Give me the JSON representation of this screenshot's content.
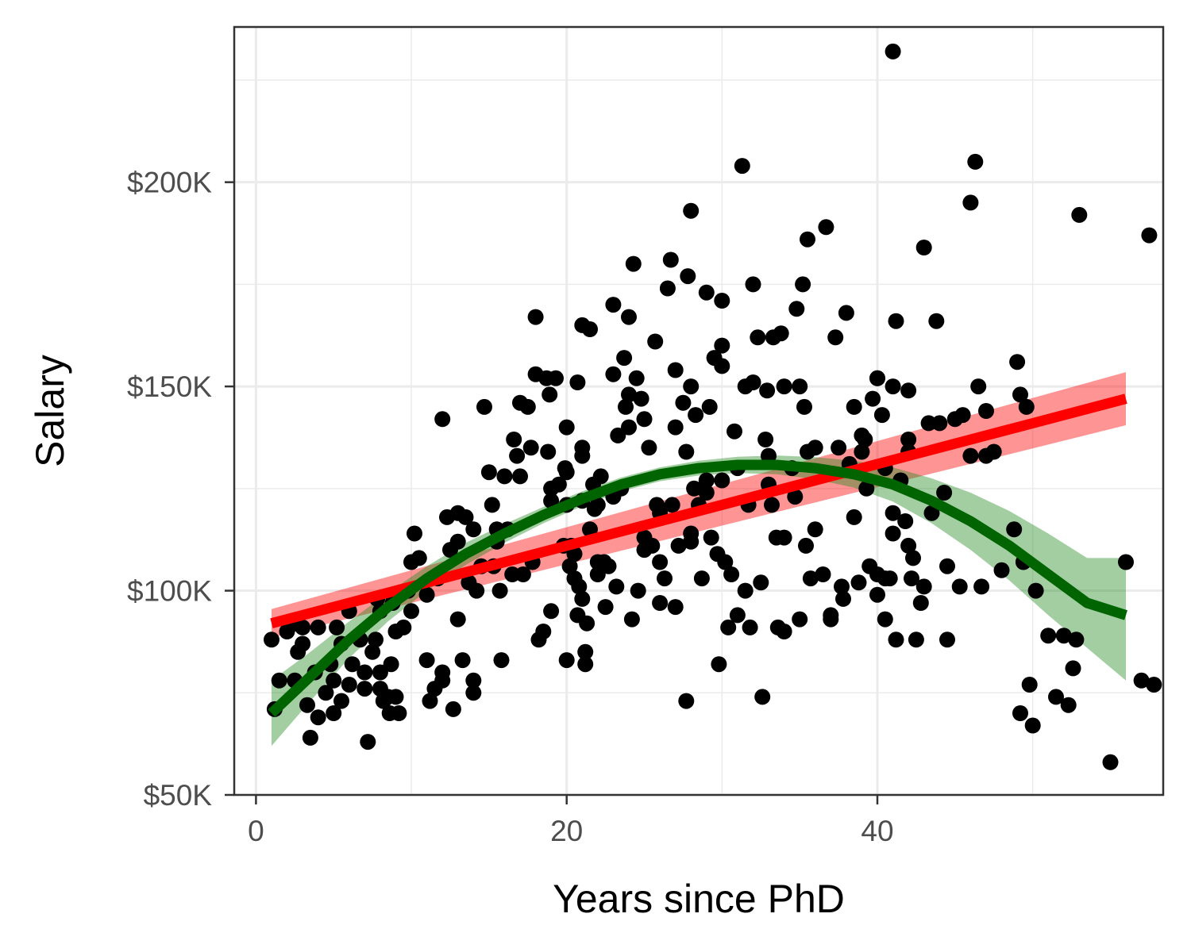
{
  "chart_data": {
    "type": "scatter",
    "title": "",
    "xlabel": "Years since PhD",
    "ylabel": "Salary",
    "xlim": [
      -1.4,
      58.4
    ],
    "ylim": [
      50000,
      238000
    ],
    "x_ticks": [
      0,
      20,
      40
    ],
    "x_tick_labels": [
      "0",
      "20",
      "40"
    ],
    "x_minor_ticks": [
      10,
      30,
      50
    ],
    "y_ticks": [
      50000,
      100000,
      150000,
      200000
    ],
    "y_tick_labels": [
      "$50K",
      "$100K",
      "$150K",
      "$200K"
    ],
    "y_minor_ticks": [
      75000,
      125000,
      175000,
      225000
    ],
    "grid": true,
    "points_color": "#000000",
    "points": [
      [
        1,
        88000
      ],
      [
        1.2,
        71000
      ],
      [
        1.5,
        78000
      ],
      [
        2,
        90000
      ],
      [
        2.5,
        92000
      ],
      [
        2.5,
        78000
      ],
      [
        2.7,
        85000
      ],
      [
        3,
        87000
      ],
      [
        3,
        91000
      ],
      [
        3.3,
        72000
      ],
      [
        3.5,
        64000
      ],
      [
        3.8,
        80000
      ],
      [
        4,
        69000
      ],
      [
        4,
        91000
      ],
      [
        4.5,
        75000
      ],
      [
        4.8,
        82000
      ],
      [
        5,
        70000
      ],
      [
        5,
        78000
      ],
      [
        5.2,
        91000
      ],
      [
        5.5,
        73000
      ],
      [
        5.5,
        87000
      ],
      [
        6,
        77000
      ],
      [
        6,
        95000
      ],
      [
        6.2,
        82000
      ],
      [
        6.7,
        88000
      ],
      [
        7,
        80000
      ],
      [
        7,
        76000
      ],
      [
        7.2,
        63000
      ],
      [
        7.5,
        85000
      ],
      [
        7.7,
        88000
      ],
      [
        7.8,
        98000
      ],
      [
        8,
        95000
      ],
      [
        8,
        80000
      ],
      [
        8,
        76000
      ],
      [
        8.2,
        73000
      ],
      [
        8.5,
        74000
      ],
      [
        8.6,
        70000
      ],
      [
        8.7,
        82000
      ],
      [
        8.8,
        97000
      ],
      [
        9,
        74000
      ],
      [
        9,
        90000
      ],
      [
        9.2,
        70000
      ],
      [
        9.5,
        91000
      ],
      [
        9.8,
        100000
      ],
      [
        10,
        107000
      ],
      [
        10,
        95000
      ],
      [
        10.2,
        114000
      ],
      [
        10.5,
        108000
      ],
      [
        11,
        99000
      ],
      [
        11,
        83000
      ],
      [
        11.2,
        73000
      ],
      [
        11.5,
        76000
      ],
      [
        11.7,
        103000
      ],
      [
        12,
        78000
      ],
      [
        12,
        80000
      ],
      [
        12,
        142000
      ],
      [
        12.3,
        118000
      ],
      [
        12.5,
        110000
      ],
      [
        12.7,
        71000
      ],
      [
        13,
        119000
      ],
      [
        13,
        112000
      ],
      [
        13,
        93000
      ],
      [
        13.3,
        83000
      ],
      [
        13.5,
        118000
      ],
      [
        13.7,
        102000
      ],
      [
        14,
        115000
      ],
      [
        14,
        78000
      ],
      [
        14,
        75000
      ],
      [
        14.2,
        100000
      ],
      [
        14.5,
        106000
      ],
      [
        14.7,
        145000
      ],
      [
        15,
        129000
      ],
      [
        15.2,
        121000
      ],
      [
        15.3,
        106000
      ],
      [
        15.5,
        112000
      ],
      [
        15.5,
        115000
      ],
      [
        15.7,
        100000
      ],
      [
        15.8,
        83000
      ],
      [
        16,
        128000
      ],
      [
        16.2,
        115000
      ],
      [
        16.5,
        104000
      ],
      [
        16.6,
        137000
      ],
      [
        16.8,
        133000
      ],
      [
        17,
        128000
      ],
      [
        17,
        146000
      ],
      [
        17.2,
        104000
      ],
      [
        17.5,
        145000
      ],
      [
        17.7,
        135000
      ],
      [
        17.8,
        107000
      ],
      [
        18,
        167000
      ],
      [
        18,
        153000
      ],
      [
        18.2,
        88000
      ],
      [
        18.5,
        90000
      ],
      [
        18.7,
        152000
      ],
      [
        18.8,
        134000
      ],
      [
        18.9,
        148000
      ],
      [
        19,
        125000
      ],
      [
        19,
        122000
      ],
      [
        19,
        95000
      ],
      [
        19.3,
        152000
      ],
      [
        19.5,
        126000
      ],
      [
        19.8,
        111000
      ],
      [
        19.9,
        130000
      ],
      [
        20,
        140000
      ],
      [
        20,
        129000
      ],
      [
        20,
        121000
      ],
      [
        20,
        83000
      ],
      [
        20.2,
        106000
      ],
      [
        20.3,
        111000
      ],
      [
        20.5,
        103000
      ],
      [
        20.5,
        109000
      ],
      [
        20.7,
        151000
      ],
      [
        20.7,
        94000
      ],
      [
        20.8,
        101000
      ],
      [
        21,
        165000
      ],
      [
        21,
        133000
      ],
      [
        21,
        135000
      ],
      [
        21,
        122000
      ],
      [
        21,
        98000
      ],
      [
        21.2,
        85000
      ],
      [
        21.2,
        82000
      ],
      [
        21.3,
        92000
      ],
      [
        21.5,
        164000
      ],
      [
        21.5,
        115000
      ],
      [
        21.7,
        126000
      ],
      [
        21.8,
        120000
      ],
      [
        22,
        121000
      ],
      [
        22,
        107000
      ],
      [
        22,
        104000
      ],
      [
        22.2,
        128000
      ],
      [
        22.4,
        107000
      ],
      [
        22.5,
        96000
      ],
      [
        22.7,
        106000
      ],
      [
        23,
        170000
      ],
      [
        23,
        153000
      ],
      [
        23,
        123000
      ],
      [
        23.2,
        101000
      ],
      [
        23.3,
        138000
      ],
      [
        23.5,
        125000
      ],
      [
        23.7,
        157000
      ],
      [
        23.8,
        145000
      ],
      [
        24,
        167000
      ],
      [
        24,
        148000
      ],
      [
        24,
        140000
      ],
      [
        24.2,
        93000
      ],
      [
        24.3,
        180000
      ],
      [
        24.5,
        152000
      ],
      [
        24.6,
        100000
      ],
      [
        24.8,
        147000
      ],
      [
        25,
        142000
      ],
      [
        25,
        113000
      ],
      [
        25,
        110000
      ],
      [
        25.3,
        135000
      ],
      [
        25.5,
        111000
      ],
      [
        25.7,
        161000
      ],
      [
        25.8,
        121000
      ],
      [
        26,
        119000
      ],
      [
        26,
        107000
      ],
      [
        26,
        97000
      ],
      [
        26.3,
        103000
      ],
      [
        26.5,
        174000
      ],
      [
        26.7,
        181000
      ],
      [
        26.8,
        121000
      ],
      [
        27,
        154000
      ],
      [
        27,
        140000
      ],
      [
        27,
        96000
      ],
      [
        27.2,
        111000
      ],
      [
        27.5,
        146000
      ],
      [
        27.7,
        134000
      ],
      [
        27.7,
        73000
      ],
      [
        27.8,
        177000
      ],
      [
        28,
        193000
      ],
      [
        28,
        150000
      ],
      [
        28,
        112000
      ],
      [
        28,
        114000
      ],
      [
        28.2,
        125000
      ],
      [
        28.3,
        143000
      ],
      [
        28.5,
        121000
      ],
      [
        28.7,
        103000
      ],
      [
        29,
        173000
      ],
      [
        29,
        127000
      ],
      [
        29,
        124000
      ],
      [
        29.2,
        145000
      ],
      [
        29.3,
        113000
      ],
      [
        29.5,
        157000
      ],
      [
        29.7,
        109000
      ],
      [
        29.8,
        82000
      ],
      [
        30,
        171000
      ],
      [
        30,
        160000
      ],
      [
        30,
        155000
      ],
      [
        30,
        127000
      ],
      [
        30.2,
        107000
      ],
      [
        30.4,
        91000
      ],
      [
        30.6,
        104000
      ],
      [
        30.8,
        139000
      ],
      [
        31,
        130000
      ],
      [
        31,
        94000
      ],
      [
        31.3,
        204000
      ],
      [
        31.5,
        150000
      ],
      [
        31.5,
        100000
      ],
      [
        31.7,
        121000
      ],
      [
        31.8,
        91000
      ],
      [
        32,
        151000
      ],
      [
        32,
        175000
      ],
      [
        32.3,
        162000
      ],
      [
        32.5,
        102000
      ],
      [
        32.6,
        74000
      ],
      [
        32.8,
        137000
      ],
      [
        32.9,
        149000
      ],
      [
        33,
        133000
      ],
      [
        33,
        126000
      ],
      [
        33.2,
        121000
      ],
      [
        33.3,
        162000
      ],
      [
        33.5,
        113000
      ],
      [
        33.6,
        91000
      ],
      [
        33.8,
        163000
      ],
      [
        34,
        150000
      ],
      [
        34,
        113000
      ],
      [
        34,
        90000
      ],
      [
        34.5,
        130000
      ],
      [
        34.7,
        123000
      ],
      [
        34.8,
        169000
      ],
      [
        35,
        150000
      ],
      [
        35,
        93000
      ],
      [
        35.2,
        175000
      ],
      [
        35.3,
        145000
      ],
      [
        35.4,
        111000
      ],
      [
        35.5,
        186000
      ],
      [
        35.5,
        134000
      ],
      [
        35.7,
        103000
      ],
      [
        36,
        135000
      ],
      [
        36,
        115000
      ],
      [
        36.5,
        104000
      ],
      [
        36.7,
        189000
      ],
      [
        37,
        94000
      ],
      [
        37,
        93000
      ],
      [
        37.3,
        162000
      ],
      [
        37.5,
        135000
      ],
      [
        37.7,
        101000
      ],
      [
        37.8,
        98000
      ],
      [
        38,
        168000
      ],
      [
        38.2,
        131000
      ],
      [
        38.5,
        145000
      ],
      [
        38.5,
        118000
      ],
      [
        38.8,
        102000
      ],
      [
        39,
        134000
      ],
      [
        39,
        138000
      ],
      [
        39.2,
        137000
      ],
      [
        39.3,
        125000
      ],
      [
        39.5,
        106000
      ],
      [
        39.7,
        147000
      ],
      [
        40,
        152000
      ],
      [
        40,
        152000
      ],
      [
        40,
        104000
      ],
      [
        40,
        99000
      ],
      [
        40.3,
        143000
      ],
      [
        40.5,
        130000
      ],
      [
        40.5,
        103000
      ],
      [
        40.5,
        93000
      ],
      [
        40.8,
        103000
      ],
      [
        41,
        232000
      ],
      [
        41,
        150000
      ],
      [
        41,
        119000
      ],
      [
        41,
        114000
      ],
      [
        41.2,
        166000
      ],
      [
        41.2,
        88000
      ],
      [
        41.5,
        127000
      ],
      [
        41.8,
        117000
      ],
      [
        42,
        149000
      ],
      [
        42,
        137000
      ],
      [
        42,
        134000
      ],
      [
        42,
        111000
      ],
      [
        42.2,
        103000
      ],
      [
        42.3,
        108000
      ],
      [
        42.5,
        88000
      ],
      [
        42.8,
        97000
      ],
      [
        43,
        184000
      ],
      [
        43,
        101000
      ],
      [
        43.3,
        141000
      ],
      [
        43.5,
        119000
      ],
      [
        43.8,
        166000
      ],
      [
        44,
        141000
      ],
      [
        44.3,
        124000
      ],
      [
        44.5,
        106000
      ],
      [
        44.5,
        88000
      ],
      [
        45,
        142000
      ],
      [
        45.3,
        101000
      ],
      [
        45.5,
        143000
      ],
      [
        46,
        133000
      ],
      [
        46,
        195000
      ],
      [
        46.3,
        205000
      ],
      [
        46.5,
        150000
      ],
      [
        46.7,
        101000
      ],
      [
        47,
        133000
      ],
      [
        47,
        144000
      ],
      [
        47.5,
        134000
      ],
      [
        48,
        105000
      ],
      [
        48.8,
        115000
      ],
      [
        49,
        156000
      ],
      [
        49.2,
        148000
      ],
      [
        49.2,
        70000
      ],
      [
        49.4,
        107000
      ],
      [
        49.6,
        145000
      ],
      [
        49.8,
        77000
      ],
      [
        50,
        67000
      ],
      [
        50.2,
        100000
      ],
      [
        51,
        89000
      ],
      [
        51.5,
        74000
      ],
      [
        52,
        89000
      ],
      [
        52.3,
        72000
      ],
      [
        52.6,
        81000
      ],
      [
        52.8,
        88000
      ],
      [
        53,
        192000
      ],
      [
        55,
        58000
      ],
      [
        56,
        107000
      ],
      [
        57,
        78000
      ],
      [
        57.5,
        187000
      ],
      [
        57.8,
        77000
      ]
    ],
    "series": [
      {
        "name": "",
        "kind": "linear-fit",
        "color": "#ff0000",
        "band_color": "#ff0000",
        "x": [
          1,
          56
        ],
        "y": [
          92000,
          147000
        ],
        "lower": [
          88500,
          140500
        ],
        "upper": [
          95500,
          153500
        ]
      },
      {
        "name": "",
        "kind": "quadratic-fit",
        "color": "#006400",
        "band_color": "#228b22",
        "x": [
          1,
          3.5,
          6,
          8.5,
          11,
          13.5,
          16,
          18.5,
          21,
          23.5,
          26,
          28.5,
          31,
          33.5,
          36,
          38.5,
          41,
          43.5,
          46,
          48.5,
          51,
          53.5,
          56
        ],
        "y": [
          70000,
          79000,
          88000,
          96000,
          103000,
          109000,
          114000,
          118500,
          122500,
          126000,
          128500,
          130000,
          130800,
          130800,
          130000,
          128500,
          126000,
          122000,
          117000,
          111000,
          104000,
          97000,
          94000
        ],
        "lower": [
          62000,
          73000,
          83500,
          92500,
          100000,
          106300,
          111700,
          116500,
          120700,
          124300,
          126800,
          128200,
          128800,
          128500,
          127300,
          125200,
          121800,
          116500,
          110000,
          102500,
          94000,
          86000,
          78000
        ],
        "upper": [
          78000,
          85000,
          92500,
          99500,
          106000,
          111700,
          116300,
          120500,
          124300,
          127700,
          130200,
          131800,
          132800,
          133100,
          132700,
          131800,
          130200,
          127500,
          124000,
          119500,
          114000,
          108000,
          108000
        ]
      }
    ]
  }
}
